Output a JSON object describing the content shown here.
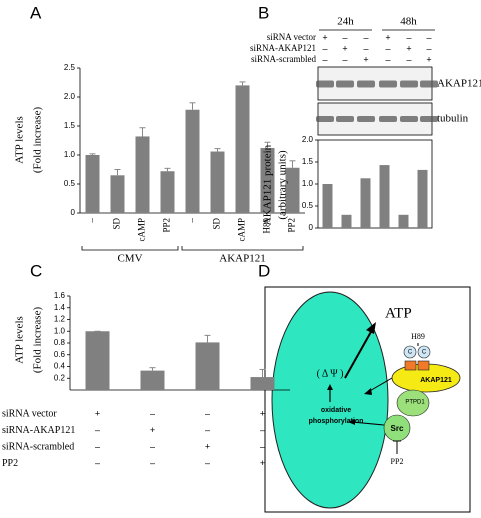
{
  "panel_letters": [
    "A",
    "B",
    "C",
    "D"
  ],
  "chart_data": [
    {
      "type": "bar",
      "ylabel": [
        "ATP levels",
        "(Fold increase)"
      ],
      "categories": [
        "–",
        "SD",
        "cAMP",
        "PP2",
        "–",
        "SD",
        "cAMP",
        "H89",
        "PP2"
      ],
      "values": [
        1.0,
        0.65,
        1.32,
        0.72,
        1.78,
        1.06,
        2.2,
        1.12,
        0.78
      ],
      "errors": [
        0.02,
        0.1,
        0.15,
        0.05,
        0.12,
        0.05,
        0.06,
        0.1,
        0.12
      ],
      "groups": [
        "CMV",
        "AKAP121"
      ],
      "color": "#808080",
      "ylim": [
        0,
        2.5
      ],
      "yticks": [
        0,
        0.5,
        {
          "value": 1,
          "label": "1.0"
        },
        1.5,
        {
          "value": 2,
          "label": "2.0"
        },
        2.5
      ]
    },
    {
      "type": "bar",
      "ylabel": [
        "AKAP121 protein",
        "(arbitrary units)"
      ],
      "values": [
        1.0,
        0.3,
        1.13,
        1.43,
        0.3,
        1.32
      ],
      "color": "#808080",
      "ylim": [
        0,
        2.0
      ],
      "yticks": [
        0,
        0.5,
        {
          "value": 1,
          "label": "1.0"
        },
        1.5,
        {
          "value": 2,
          "label": "2.0"
        }
      ]
    },
    {
      "type": "bar",
      "ylabel": [
        "ATP levels",
        "(Fold increase)"
      ],
      "values": [
        1.0,
        0.33,
        0.81,
        0.22
      ],
      "errors": [
        0,
        0.05,
        0.12,
        0.13
      ],
      "color": "#808080",
      "ylim": [
        0,
        1.6
      ],
      "yticks": [
        0.2,
        0.4,
        0.6,
        0.8,
        {
          "value": 1,
          "label": "1.0"
        },
        1.2,
        1.4,
        1.6
      ],
      "conditions": [
        {
          "label": "siRNA vector",
          "signs": [
            "+",
            "–",
            "–",
            "+"
          ]
        },
        {
          "label": "siRNA-AKAP121",
          "signs": [
            "–",
            "+",
            "–",
            "–"
          ]
        },
        {
          "label": "siRNA-scrambled",
          "signs": [
            "–",
            "–",
            "+",
            "–"
          ]
        },
        {
          "label": "PP2",
          "signs": [
            "–",
            "–",
            "–",
            "+"
          ]
        }
      ]
    }
  ],
  "blot": {
    "timepoints": [
      "24h",
      "48h"
    ],
    "rows": [
      {
        "label": "siRNA vector",
        "signs": [
          "+",
          "–",
          "–",
          "+",
          "–",
          "–"
        ]
      },
      {
        "label": "siRNA-AKAP121",
        "signs": [
          "–",
          "+",
          "–",
          "–",
          "+",
          "–"
        ]
      },
      {
        "label": "siRNA-scrambled",
        "signs": [
          "–",
          "–",
          "+",
          "–",
          "–",
          "+"
        ]
      }
    ],
    "bands": [
      "AKAP121",
      "tubulin"
    ]
  },
  "diagram": {
    "output": "ATP",
    "potential": "( Δ Ψ )",
    "process": [
      "oxidative",
      "phosphorylation"
    ],
    "inhibitor": "H89",
    "catalytic": [
      "C",
      "C"
    ],
    "anchor": "AKAP121",
    "phosphatase": "PTPD1",
    "kinase": "Src",
    "kinase_inhibitor": "PP2"
  }
}
